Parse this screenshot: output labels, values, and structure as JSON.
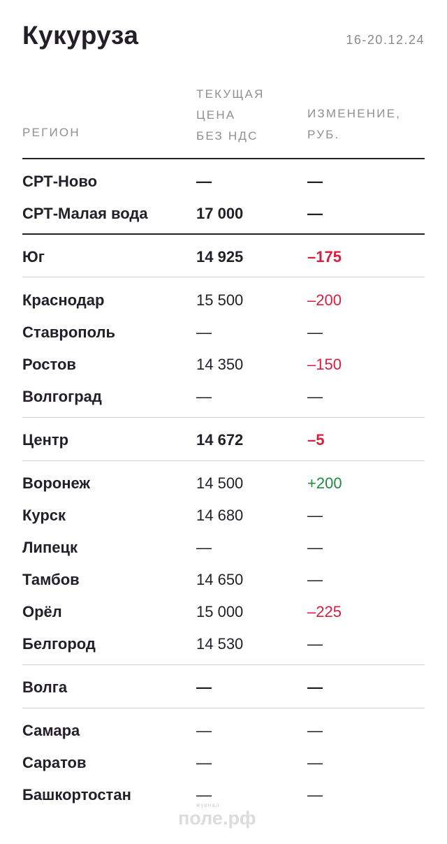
{
  "header": {
    "title": "Кукуруза",
    "date": "16-20.12.24"
  },
  "columns": {
    "region": "РЕГИОН",
    "price": [
      "ТЕКУЩАЯ",
      "ЦЕНА",
      "БЕЗ НДС"
    ],
    "change": [
      "ИЗМЕНЕНИЕ,",
      "РУБ."
    ]
  },
  "rows": [
    {
      "region": "СРТ-Ново",
      "price": "—",
      "change": "—",
      "bold": true,
      "change_sign": "none"
    },
    {
      "region": "СРТ-Малая вода",
      "price": "17 000",
      "change": "—",
      "bold": true,
      "change_sign": "none"
    },
    {
      "region": "Юг",
      "price": "14 925",
      "change": "–175",
      "bold": true,
      "change_sign": "neg"
    },
    {
      "region": "Краснодар",
      "price": "15 500",
      "change": "–200",
      "bold": false,
      "change_sign": "neg"
    },
    {
      "region": "Ставрополь",
      "price": "—",
      "change": "—",
      "bold": false,
      "change_sign": "none"
    },
    {
      "region": "Ростов",
      "price": "14 350",
      "change": "–150",
      "bold": false,
      "change_sign": "neg"
    },
    {
      "region": "Волгоград",
      "price": "—",
      "change": "—",
      "bold": false,
      "change_sign": "none"
    },
    {
      "region": "Центр",
      "price": "14 672",
      "change": "–5",
      "bold": true,
      "change_sign": "neg"
    },
    {
      "region": "Воронеж",
      "price": "14 500",
      "change": "+200",
      "bold": false,
      "change_sign": "pos"
    },
    {
      "region": "Курск",
      "price": "14 680",
      "change": "—",
      "bold": false,
      "change_sign": "none"
    },
    {
      "region": "Липецк",
      "price": "—",
      "change": "—",
      "bold": false,
      "change_sign": "none"
    },
    {
      "region": "Тамбов",
      "price": "14 650",
      "change": "—",
      "bold": false,
      "change_sign": "none"
    },
    {
      "region": "Орёл",
      "price": "15 000",
      "change": "–225",
      "bold": false,
      "change_sign": "neg"
    },
    {
      "region": "Белгород",
      "price": "14 530",
      "change": "—",
      "bold": false,
      "change_sign": "none"
    },
    {
      "region": "Волга",
      "price": "—",
      "change": "—",
      "bold": true,
      "change_sign": "none"
    },
    {
      "region": "Самара",
      "price": "—",
      "change": "—",
      "bold": false,
      "change_sign": "none"
    },
    {
      "region": "Саратов",
      "price": "—",
      "change": "—",
      "bold": false,
      "change_sign": "none"
    },
    {
      "region": "Башкортостан",
      "price": "—",
      "change": "—",
      "bold": false,
      "change_sign": "none"
    }
  ],
  "watermark": {
    "sup": "журнал",
    "main": "поле.рф"
  },
  "colors": {
    "text": "#231f29",
    "negative": "#d81e3f",
    "positive": "#1f8a44",
    "muted": "#8f8f93"
  }
}
